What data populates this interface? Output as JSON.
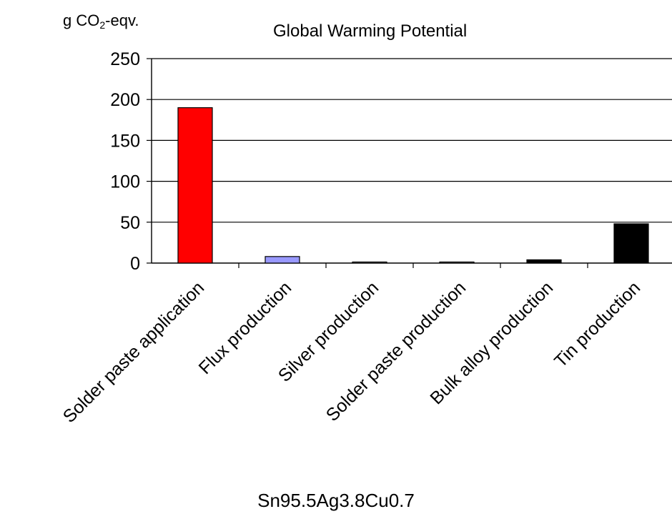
{
  "chart_data": {
    "type": "bar",
    "title": "Global Warming Potential",
    "ylabel_main": "g CO",
    "ylabel_sub": "2",
    "ylabel_rest": "-eqv.",
    "xlabel": "Sn95.5Ag3.8Cu0.7",
    "ylim": [
      0,
      250
    ],
    "yticks": [
      0,
      50,
      100,
      150,
      200,
      250
    ],
    "grid": true,
    "legend": "none",
    "categories": [
      "Solder paste application",
      "Flux production",
      "Silver production",
      "Solder paste production",
      "Bulk alloy production",
      "Tin production"
    ],
    "values": [
      190,
      8,
      1,
      1,
      4,
      48
    ],
    "bar_colors": [
      "#ff0000",
      "#9999ff",
      "#999999",
      "#999999",
      "#333333",
      "#000000"
    ],
    "bar_patterns": [
      "solid",
      "solid",
      "solid",
      "solid",
      "dotted",
      "solid"
    ]
  }
}
